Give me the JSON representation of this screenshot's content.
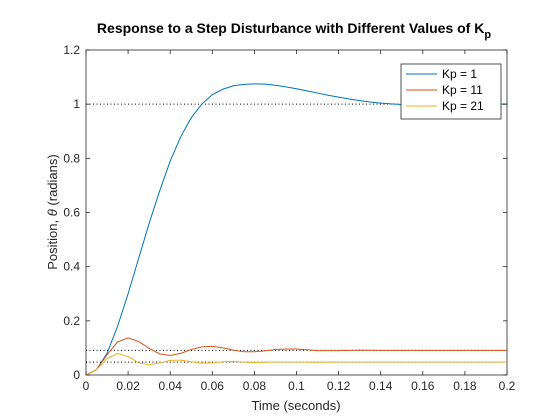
{
  "chart_data": {
    "type": "line",
    "title_main": "Response to a Step Disturbance with Different Values of K",
    "title_subscript": "p",
    "xlabel": "Time (seconds)",
    "ylabel_prefix": "Position, ",
    "ylabel_symbol": "θ",
    "ylabel_suffix": " (radians)",
    "xlim": [
      0,
      0.2
    ],
    "ylim": [
      0,
      1.2
    ],
    "xticks": [
      "0",
      "0.02",
      "0.04",
      "0.06",
      "0.08",
      "0.1",
      "0.12",
      "0.14",
      "0.16",
      "0.18",
      "0.2"
    ],
    "xtick_values": [
      0,
      0.02,
      0.04,
      0.06,
      0.08,
      0.1,
      0.12,
      0.14,
      0.16,
      0.18,
      0.2
    ],
    "yticks": [
      "0",
      "0.2",
      "0.4",
      "0.6",
      "0.8",
      "1",
      "1.2"
    ],
    "ytick_values": [
      0,
      0.2,
      0.4,
      0.6,
      0.8,
      1,
      1.2
    ],
    "grid": false,
    "legend_position": "top-right",
    "reference_lines": [
      {
        "y": 1.0,
        "color": "#000000",
        "style": "dotted"
      },
      {
        "y": 0.0909,
        "color": "#000000",
        "style": "dotted"
      },
      {
        "y": 0.0476,
        "color": "#000000",
        "style": "dotted"
      }
    ],
    "series": [
      {
        "name": "Kp = 1",
        "color": "#0072BD",
        "x": [
          0,
          0.005,
          0.01,
          0.015,
          0.02,
          0.025,
          0.03,
          0.035,
          0.04,
          0.045,
          0.05,
          0.055,
          0.06,
          0.065,
          0.07,
          0.075,
          0.08,
          0.085,
          0.09,
          0.095,
          0.1,
          0.105,
          0.11,
          0.115,
          0.12,
          0.125,
          0.13,
          0.135,
          0.14,
          0.145,
          0.15,
          0.155,
          0.16,
          0.165,
          0.17,
          0.175,
          0.18,
          0.185,
          0.19,
          0.195,
          0.2
        ],
        "y": [
          0,
          0.02,
          0.08,
          0.18,
          0.3,
          0.43,
          0.56,
          0.68,
          0.79,
          0.88,
          0.95,
          1.0,
          1.035,
          1.055,
          1.068,
          1.073,
          1.075,
          1.074,
          1.07,
          1.064,
          1.057,
          1.049,
          1.041,
          1.033,
          1.026,
          1.019,
          1.013,
          1.008,
          1.004,
          1.001,
          0.999,
          0.998,
          0.997,
          0.997,
          0.998,
          0.998,
          0.999,
          0.999,
          1.0,
          1.0,
          1.0
        ]
      },
      {
        "name": "Kp = 11",
        "color": "#D95319",
        "x": [
          0,
          0.005,
          0.01,
          0.015,
          0.02,
          0.025,
          0.03,
          0.035,
          0.04,
          0.045,
          0.05,
          0.055,
          0.06,
          0.065,
          0.07,
          0.075,
          0.08,
          0.085,
          0.09,
          0.095,
          0.1,
          0.105,
          0.11,
          0.12,
          0.13,
          0.14,
          0.15,
          0.16,
          0.17,
          0.18,
          0.19,
          0.2
        ],
        "y": [
          0,
          0.02,
          0.075,
          0.122,
          0.137,
          0.124,
          0.098,
          0.078,
          0.072,
          0.08,
          0.094,
          0.104,
          0.106,
          0.1,
          0.092,
          0.086,
          0.086,
          0.089,
          0.094,
          0.096,
          0.096,
          0.093,
          0.09,
          0.09,
          0.092,
          0.091,
          0.091,
          0.091,
          0.091,
          0.091,
          0.091,
          0.091
        ]
      },
      {
        "name": "Kp = 21",
        "color": "#EDB120",
        "x": [
          0,
          0.005,
          0.01,
          0.015,
          0.02,
          0.025,
          0.03,
          0.035,
          0.04,
          0.045,
          0.05,
          0.055,
          0.06,
          0.065,
          0.07,
          0.075,
          0.08,
          0.09,
          0.1,
          0.11,
          0.12,
          0.13,
          0.14,
          0.15,
          0.16,
          0.17,
          0.18,
          0.19,
          0.2
        ],
        "y": [
          0,
          0.02,
          0.06,
          0.08,
          0.068,
          0.045,
          0.038,
          0.045,
          0.054,
          0.055,
          0.049,
          0.044,
          0.045,
          0.049,
          0.05,
          0.048,
          0.046,
          0.048,
          0.048,
          0.047,
          0.048,
          0.048,
          0.048,
          0.048,
          0.048,
          0.048,
          0.048,
          0.048,
          0.048
        ]
      }
    ]
  }
}
